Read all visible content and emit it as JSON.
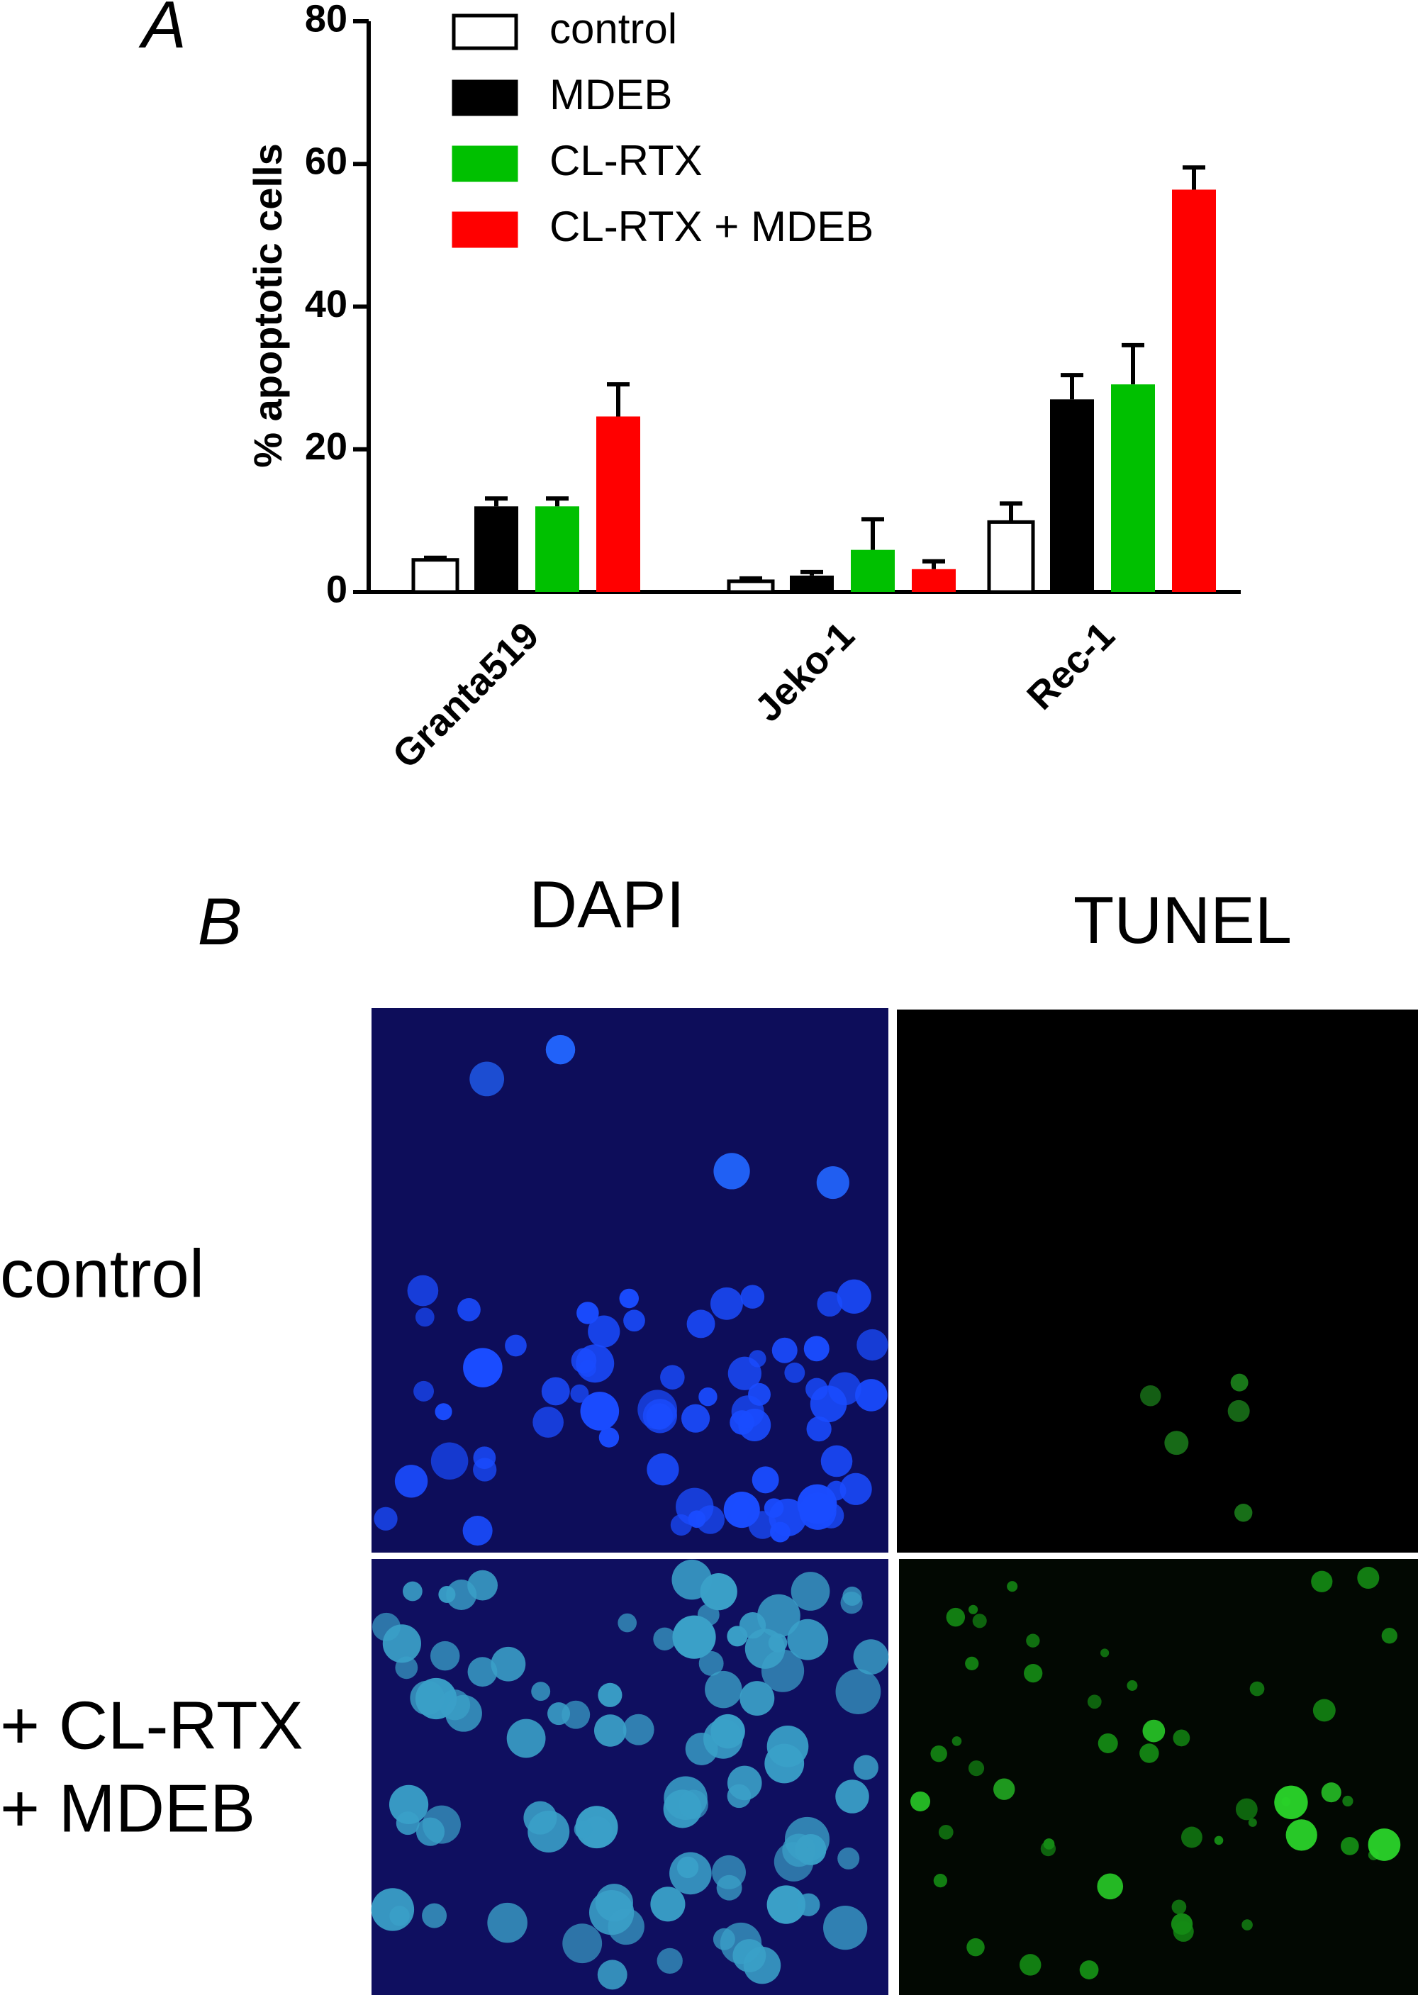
{
  "chart_data": {
    "type": "bar",
    "panel_label": "A",
    "y_label": "% apoptotic cells",
    "categories": [
      "Granta519",
      "Jeko-1",
      "Rec-1"
    ],
    "series": [
      {
        "name": "control",
        "color": "#ffffff",
        "values": [
          4.5,
          1.5,
          9.8
        ],
        "errors": [
          0.3,
          0.4,
          2.6
        ]
      },
      {
        "name": "MDEB",
        "color": "#000000",
        "values": [
          12,
          2.3,
          27
        ],
        "errors": [
          1.1,
          0.5,
          3.4
        ]
      },
      {
        "name": "CL-RTX",
        "color": "#00c000",
        "values": [
          12,
          5.9,
          29.1
        ],
        "errors": [
          1.1,
          4.3,
          5.5
        ]
      },
      {
        "name": "CL-RTX + MDEB",
        "color": "#ff0000",
        "values": [
          24.6,
          3.2,
          56.4
        ],
        "errors": [
          4.5,
          1.1,
          3.1
        ]
      }
    ],
    "ylim": [
      0,
      80
    ],
    "yticks": [
      0,
      20,
      40,
      60,
      80
    ],
    "grid": false,
    "legend": "top-left"
  },
  "panel_b": {
    "label": "B",
    "columns": [
      "DAPI",
      "TUNEL"
    ],
    "rows": [
      [
        "control"
      ],
      [
        "+ CL-RTX",
        "+ MDEB"
      ]
    ]
  }
}
